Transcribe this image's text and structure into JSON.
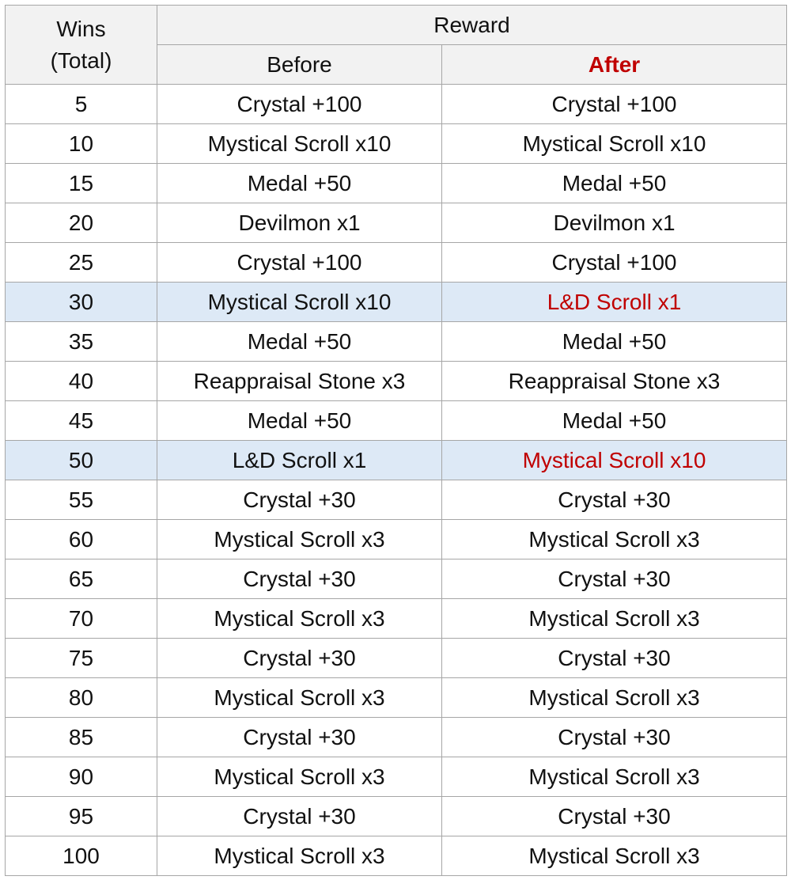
{
  "header": {
    "wins": "Wins\n(Total)",
    "reward": "Reward",
    "before": "Before",
    "after": "After"
  },
  "table": {
    "rows": [
      {
        "wins": 5,
        "before": "Crystal +100",
        "after": "Crystal +100"
      },
      {
        "wins": 10,
        "before": "Mystical Scroll x10",
        "after": "Mystical Scroll x10"
      },
      {
        "wins": 15,
        "before": "Medal +50",
        "after": "Medal +50"
      },
      {
        "wins": 20,
        "before": "Devilmon x1",
        "after": "Devilmon x1"
      },
      {
        "wins": 25,
        "before": "Crystal +100",
        "after": "Crystal +100"
      },
      {
        "wins": 30,
        "before": "Mystical Scroll x10",
        "after": "L&D Scroll x1",
        "changed": true
      },
      {
        "wins": 35,
        "before": "Medal +50",
        "after": "Medal +50"
      },
      {
        "wins": 40,
        "before": "Reappraisal Stone x3",
        "after": "Reappraisal Stone x3"
      },
      {
        "wins": 45,
        "before": "Medal +50",
        "after": "Medal +50"
      },
      {
        "wins": 50,
        "before": "L&D Scroll x1",
        "after": "Mystical Scroll x10",
        "changed": true
      },
      {
        "wins": 55,
        "before": "Crystal +30",
        "after": "Crystal +30"
      },
      {
        "wins": 60,
        "before": "Mystical Scroll x3",
        "after": "Mystical Scroll x3"
      },
      {
        "wins": 65,
        "before": "Crystal +30",
        "after": "Crystal +30"
      },
      {
        "wins": 70,
        "before": "Mystical Scroll x3",
        "after": "Mystical Scroll x3"
      },
      {
        "wins": 75,
        "before": "Crystal +30",
        "after": "Crystal +30"
      },
      {
        "wins": 80,
        "before": "Mystical Scroll x3",
        "after": "Mystical Scroll x3"
      },
      {
        "wins": 85,
        "before": "Crystal +30",
        "after": "Crystal +30"
      },
      {
        "wins": 90,
        "before": "Mystical Scroll x3",
        "after": "Mystical Scroll x3"
      },
      {
        "wins": 95,
        "before": "Crystal +30",
        "after": "Crystal +30"
      },
      {
        "wins": 100,
        "before": "Mystical Scroll x3",
        "after": "Mystical Scroll x3"
      }
    ]
  }
}
